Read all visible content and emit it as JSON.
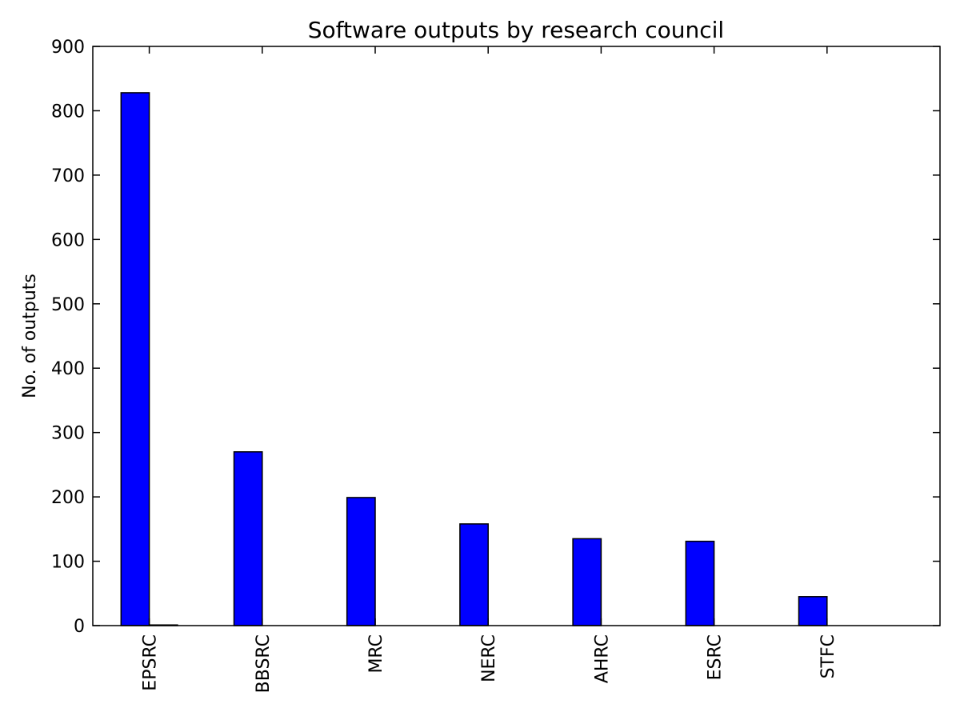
{
  "chart_data": {
    "type": "bar",
    "title": "Software outputs by research council",
    "xlabel": "",
    "ylabel": "No. of outputs",
    "categories": [
      "EPSRC",
      "BBSRC",
      "MRC",
      "NERC",
      "AHRC",
      "ESRC",
      "STFC"
    ],
    "series": [
      {
        "values": [
          828,
          270,
          199,
          158,
          135,
          131,
          45
        ]
      },
      {
        "values": [
          1,
          0,
          0,
          0,
          0,
          0,
          0
        ]
      }
    ],
    "ylim": [
      0,
      900
    ],
    "yticks": [
      0,
      100,
      200,
      300,
      400,
      500,
      600,
      700,
      800,
      900
    ],
    "grid": false,
    "legend": "none",
    "colors": {
      "bar": "#0000ff",
      "edge": "#000000",
      "background": "#ffffff"
    }
  }
}
